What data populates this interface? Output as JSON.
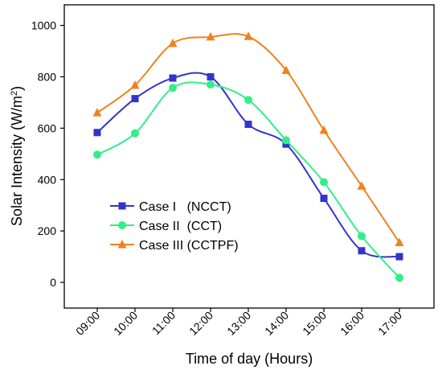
{
  "chart_data": {
    "type": "line",
    "categories": [
      "09:00",
      "10:00",
      "11:00",
      "12:00",
      "13:00",
      "14:00",
      "15:00",
      "16:00",
      "17:00"
    ],
    "series": [
      {
        "name": "Case I   (NCCT)",
        "values": [
          583,
          715,
          795,
          800,
          615,
          538,
          327,
          123,
          100
        ],
        "color": "#3333cc",
        "marker": "square"
      },
      {
        "name": "Case II  (CCT)",
        "values": [
          497,
          580,
          757,
          770,
          710,
          553,
          390,
          180,
          18
        ],
        "color": "#33ee88",
        "marker": "circle"
      },
      {
        "name": "Case III (CCTPF)",
        "values": [
          660,
          767,
          930,
          955,
          957,
          825,
          592,
          375,
          155
        ],
        "color": "#f0821e",
        "marker": "triangle"
      }
    ],
    "xlabel": "Time of day (Hours)",
    "ylabel_main": "Solar Intensity (W/m",
    "ylabel_sup": "2",
    "ylabel_close": ")",
    "ylim": [
      -100,
      1080
    ],
    "yticks": [
      0,
      200,
      400,
      600,
      800,
      1000
    ],
    "yticks_labels": [
      "0",
      "200",
      "400",
      "600",
      "800",
      "1000"
    ],
    "grid": false,
    "legend_position": "lower-left"
  }
}
